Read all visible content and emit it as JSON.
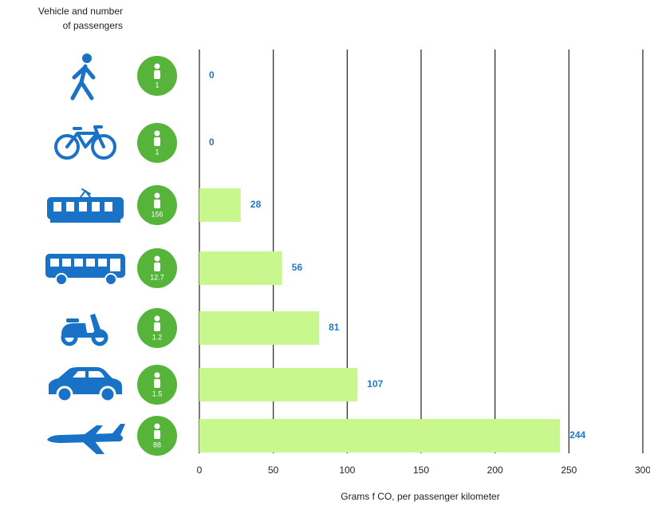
{
  "chart_data": {
    "type": "hbar",
    "legend_title": [
      "Vehicle and number",
      "of passengers"
    ],
    "x_label": "Grams f CO, per passenger kilometer",
    "categories": [
      null,
      null,
      null,
      null,
      null,
      null,
      null
    ],
    "passengers": [
      1,
      1,
      156,
      12.7,
      1.2,
      1.5,
      88
    ],
    "values": [
      0,
      0,
      28,
      56,
      81,
      107,
      244
    ],
    "color": "#c8f78e",
    "label_color": "#1f78c8",
    "badge_color": "#56b43a",
    "xlim": [
      0,
      300
    ],
    "xticks": [
      0,
      50,
      100,
      150,
      200,
      250,
      300
    ],
    "grid": true
  }
}
